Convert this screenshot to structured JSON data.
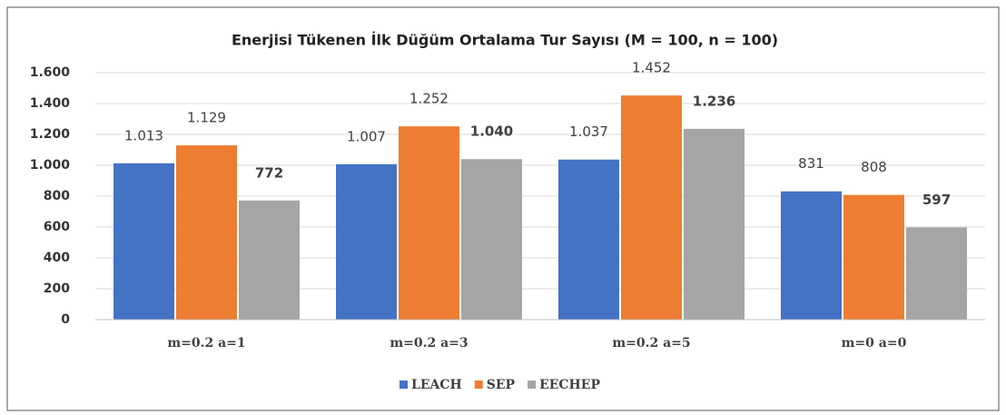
{
  "chart_data": {
    "type": "bar",
    "title": "Enerjisi Tükenen İlk Düğüm Ortalama Tur Sayısı (M = 100, n = 100)",
    "categories": [
      "m=0.2 a=1",
      "m=0.2 a=3",
      "m=0.2 a=5",
      "m=0 a=0"
    ],
    "series": [
      {
        "name": "LEACH",
        "color": "#4472c4",
        "values": [
          1013,
          1007,
          1037,
          831
        ],
        "value_labels": [
          "1.013",
          "1.007",
          "1.037",
          "831"
        ]
      },
      {
        "name": "SEP",
        "color": "#ed7d31",
        "values": [
          1129,
          1252,
          1452,
          808
        ],
        "value_labels": [
          "1.129",
          "1.252",
          "1.452",
          "808"
        ]
      },
      {
        "name": "EECHEP",
        "color": "#a5a5a5",
        "values": [
          772,
          1040,
          1236,
          597
        ],
        "value_labels": [
          "772",
          "1.040",
          "1.236",
          "597"
        ]
      }
    ],
    "ylim": [
      0,
      1600
    ],
    "yticks": [
      0,
      200,
      400,
      600,
      800,
      {
        "value": 1000,
        "label": "1.000"
      },
      {
        "value": 1200,
        "label": "1.200"
      },
      {
        "value": 1400,
        "label": "1.400"
      },
      {
        "value": 1600,
        "label": "1.600"
      }
    ],
    "grid": true,
    "legend": "bottom"
  }
}
